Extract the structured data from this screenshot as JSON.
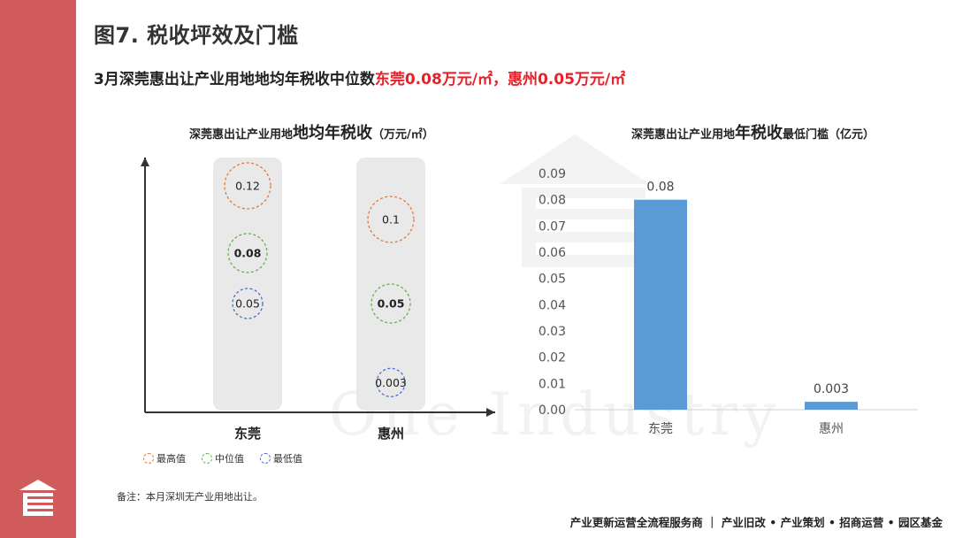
{
  "page": {
    "title": "图7. 税收坪效及门槛",
    "subtitle_main": "3月深莞惠出让产业用地地均年税收中位数",
    "subtitle_highlight": "东莞0.08万元/㎡，惠州0.05万元/㎡",
    "note": "备注：本月深圳无产业用地出让。",
    "footer": "产业更新运营全流程服务商 ｜ 产业旧改 • 产业策划 • 招商运营 • 园区基金",
    "watermark": "One Industry",
    "accent_color": "#d15b5b",
    "highlight_color": "#e8202a"
  },
  "left_chart_title": {
    "part1": "深莞惠出让产业用地",
    "part2": "地均年税收",
    "part3": "（万元/㎡）"
  },
  "right_chart_title": {
    "part1": "深莞惠出让产业用地",
    "part2": "年税收",
    "part3": "最低门槛（亿元）"
  },
  "legend": [
    {
      "label": "最高值",
      "color": "#e07a3c"
    },
    {
      "label": "中位值",
      "color": "#6ab04c"
    },
    {
      "label": "最低值",
      "color": "#4a6fd0"
    }
  ],
  "chart_data": [
    {
      "type": "scatter",
      "categories": [
        "东莞",
        "惠州"
      ],
      "series": [
        {
          "name": "最高值",
          "values": [
            0.12,
            0.1
          ],
          "labels": [
            "0.12",
            "0.1"
          ],
          "color": "#e07a3c"
        },
        {
          "name": "中位值",
          "values": [
            0.08,
            0.05
          ],
          "labels": [
            "0.08",
            "0.05"
          ],
          "color": "#6ab04c",
          "bold": true
        },
        {
          "name": "最低值",
          "values": [
            0.05,
            0.003
          ],
          "labels": [
            "0.05",
            "0.003"
          ],
          "color": "#4a6fd0"
        }
      ],
      "legend_position": "bottom-left"
    },
    {
      "type": "bar",
      "categories": [
        "东莞",
        "惠州"
      ],
      "values": [
        0.08,
        0.003
      ],
      "value_labels": [
        "0.08",
        "0.003"
      ],
      "ylim": [
        0,
        0.09
      ],
      "yticks": [
        "0.00",
        "0.01",
        "0.02",
        "0.03",
        "0.04",
        "0.05",
        "0.06",
        "0.07",
        "0.08",
        "0.09"
      ],
      "bar_color": "#5b9bd5",
      "grid": false
    }
  ]
}
